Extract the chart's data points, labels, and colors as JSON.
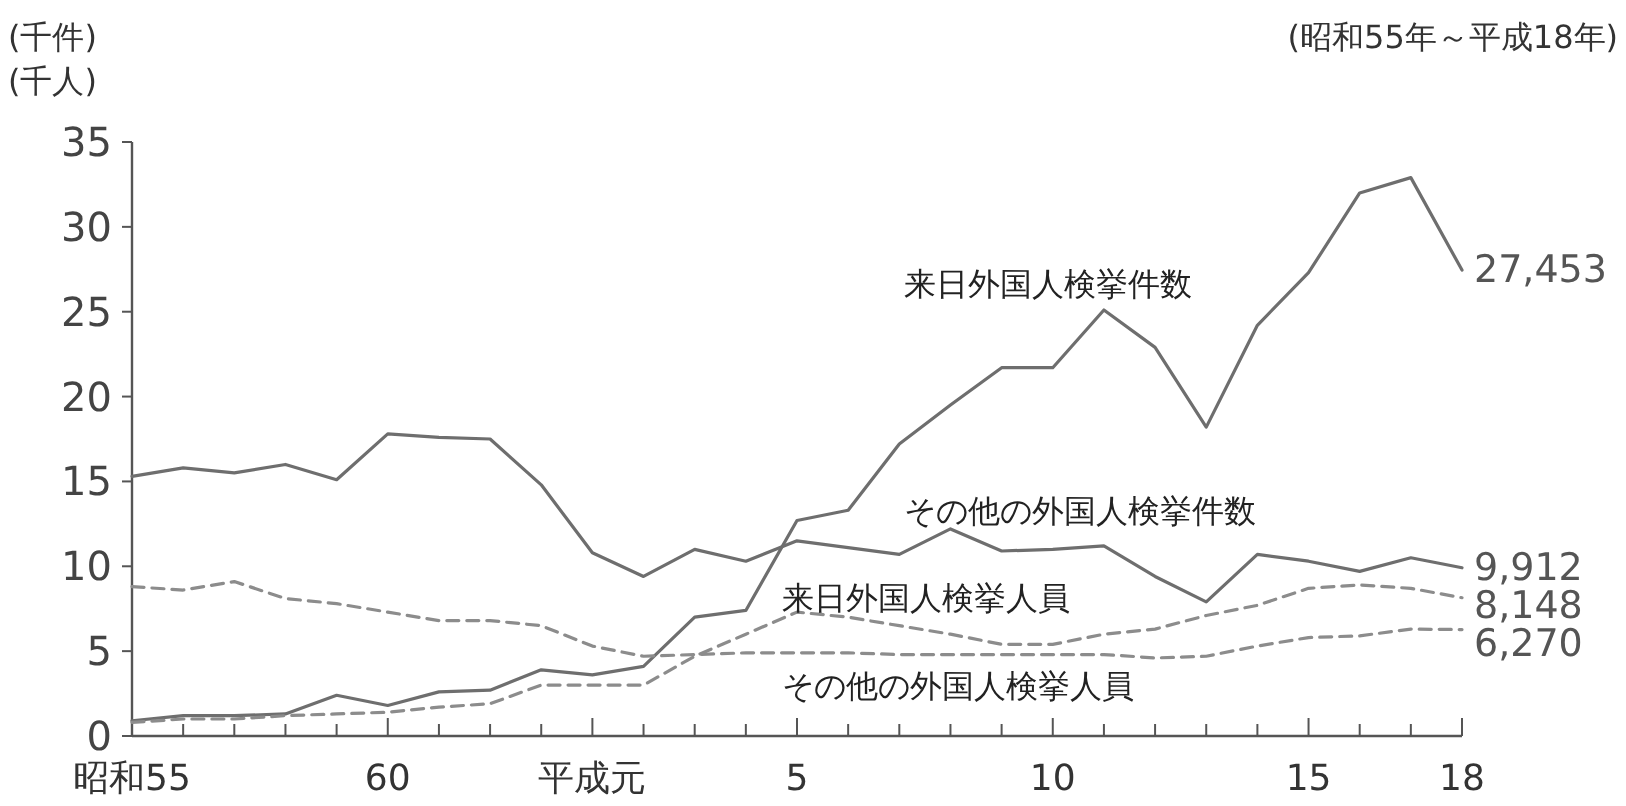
{
  "chart_data": {
    "type": "line",
    "ylabel": "(千件)\n(千人)",
    "annotations": [
      "(昭和55年～平成18年)",
      {
        "text": "27,453",
        "x": "18",
        "y": 27.453
      },
      {
        "text": "9,912",
        "x": "18",
        "y": 9.912
      },
      {
        "text": "8,148",
        "x": "18",
        "y": 8.148
      },
      {
        "text": "6,270",
        "x": "18",
        "y": 6.27
      }
    ],
    "categories": [
      "昭和55",
      null,
      null,
      null,
      null,
      "60",
      null,
      null,
      null,
      "平成元",
      null,
      null,
      null,
      "5",
      null,
      null,
      null,
      null,
      "10",
      null,
      null,
      null,
      null,
      "15",
      null,
      null,
      "18"
    ],
    "ylim": [
      0,
      35
    ],
    "yticks": [
      0,
      5,
      10,
      15,
      20,
      25,
      30,
      35
    ],
    "series": [
      {
        "name": "来日外国人検挙件数",
        "color": "#6e6e6e",
        "line_style": "solid",
        "values": [
          0.9,
          1.2,
          1.2,
          1.3,
          2.4,
          1.8,
          2.6,
          2.7,
          3.9,
          3.6,
          4.1,
          7.0,
          7.4,
          12.7,
          13.3,
          17.2,
          19.5,
          21.7,
          21.7,
          25.1,
          22.9,
          18.2,
          24.2,
          27.3,
          32.0,
          32.9,
          27.453
        ]
      },
      {
        "name": "その他の外国人検挙件数",
        "color": "#6e6e6e",
        "line_style": "solid",
        "values": [
          15.3,
          15.8,
          15.5,
          16.0,
          15.1,
          17.8,
          17.6,
          17.5,
          14.8,
          10.8,
          9.4,
          11.0,
          10.3,
          11.5,
          11.1,
          10.7,
          12.2,
          10.9,
          11.0,
          11.2,
          9.4,
          7.9,
          10.7,
          10.3,
          9.7,
          10.5,
          9.912
        ]
      },
      {
        "name": "来日外国人検挙人員",
        "color": "#8c8c8c",
        "line_style": "dashed",
        "values": [
          0.8,
          1.0,
          1.0,
          1.2,
          1.3,
          1.4,
          1.7,
          1.9,
          3.0,
          3.0,
          3.0,
          4.7,
          6.0,
          7.3,
          7.0,
          6.5,
          6.0,
          5.4,
          5.4,
          6.0,
          6.3,
          7.1,
          7.7,
          8.7,
          8.9,
          8.7,
          8.148
        ]
      },
      {
        "name": "その他の外国人検挙人員",
        "color": "#8c8c8c",
        "line_style": "dashed",
        "values": [
          8.8,
          8.6,
          9.1,
          8.1,
          7.8,
          7.3,
          6.8,
          6.8,
          6.5,
          5.3,
          4.7,
          4.8,
          4.9,
          4.9,
          4.9,
          4.8,
          4.8,
          4.8,
          4.8,
          4.8,
          4.6,
          4.7,
          5.3,
          5.8,
          5.9,
          6.3,
          6.27
        ]
      }
    ]
  }
}
